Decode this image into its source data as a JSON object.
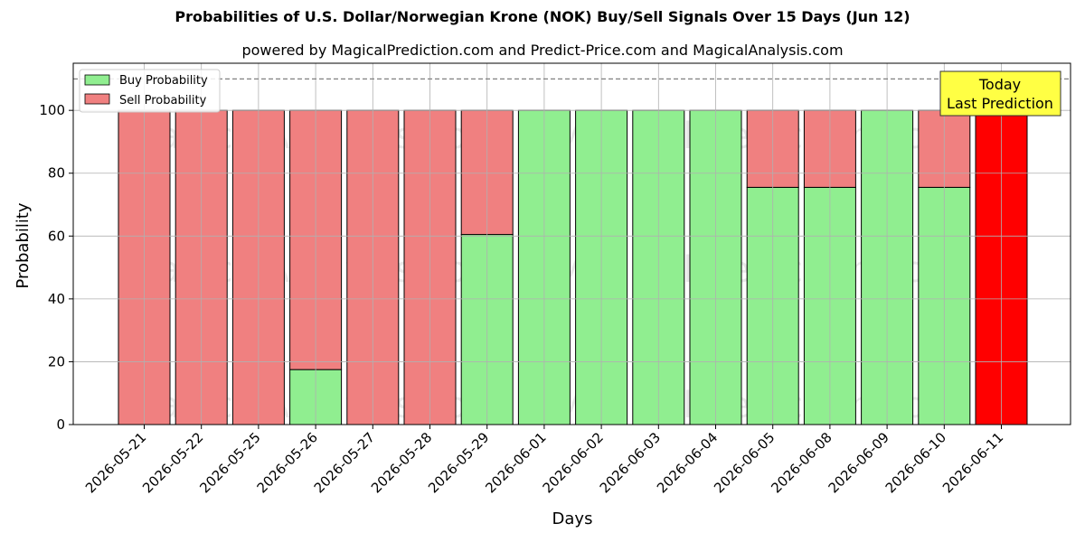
{
  "title": "Probabilities of U.S. Dollar/Norwegian Krone (NOK) Buy/Sell Signals Over 15 Days (Jun 12)",
  "subtitle": "powered by MagicalPrediction.com and Predict-Price.com and MagicalAnalysis.com",
  "watermarks": [
    "MagicalAnalysis.com",
    "MagicalPrediction.com"
  ],
  "colors": {
    "buy": "#90ee90",
    "sell": "#f08080",
    "today": "#ff0000",
    "annotation_bg": "#ffff44"
  },
  "chart_data": {
    "type": "bar",
    "stacked": true,
    "xlabel": "Days",
    "ylabel": "Probability",
    "ylim": [
      0,
      115
    ],
    "yticks": [
      0,
      20,
      40,
      60,
      80,
      100
    ],
    "grid": true,
    "legend_position": "top-left",
    "reference_line": 110,
    "categories": [
      "2026-05-21",
      "2026-05-22",
      "2026-05-25",
      "2026-05-26",
      "2026-05-27",
      "2026-05-28",
      "2026-05-29",
      "2026-06-01",
      "2026-06-02",
      "2026-06-03",
      "2026-06-04",
      "2026-06-05",
      "2026-06-08",
      "2026-06-09",
      "2026-06-10",
      "2026-06-11"
    ],
    "series": [
      {
        "name": "Buy Probability",
        "values": [
          0,
          0,
          0,
          17.5,
          0,
          0,
          60.5,
          100,
          100,
          100,
          100,
          75.5,
          75.5,
          100,
          75.5,
          0
        ]
      },
      {
        "name": "Sell Probability",
        "values": [
          100,
          100,
          100,
          82.5,
          100,
          100,
          39.5,
          0,
          0,
          0,
          0,
          24.5,
          24.5,
          0,
          24.5,
          100
        ]
      }
    ],
    "annotation": {
      "lines": [
        "Today",
        "Last Prediction"
      ],
      "category": "2026-06-11"
    }
  }
}
